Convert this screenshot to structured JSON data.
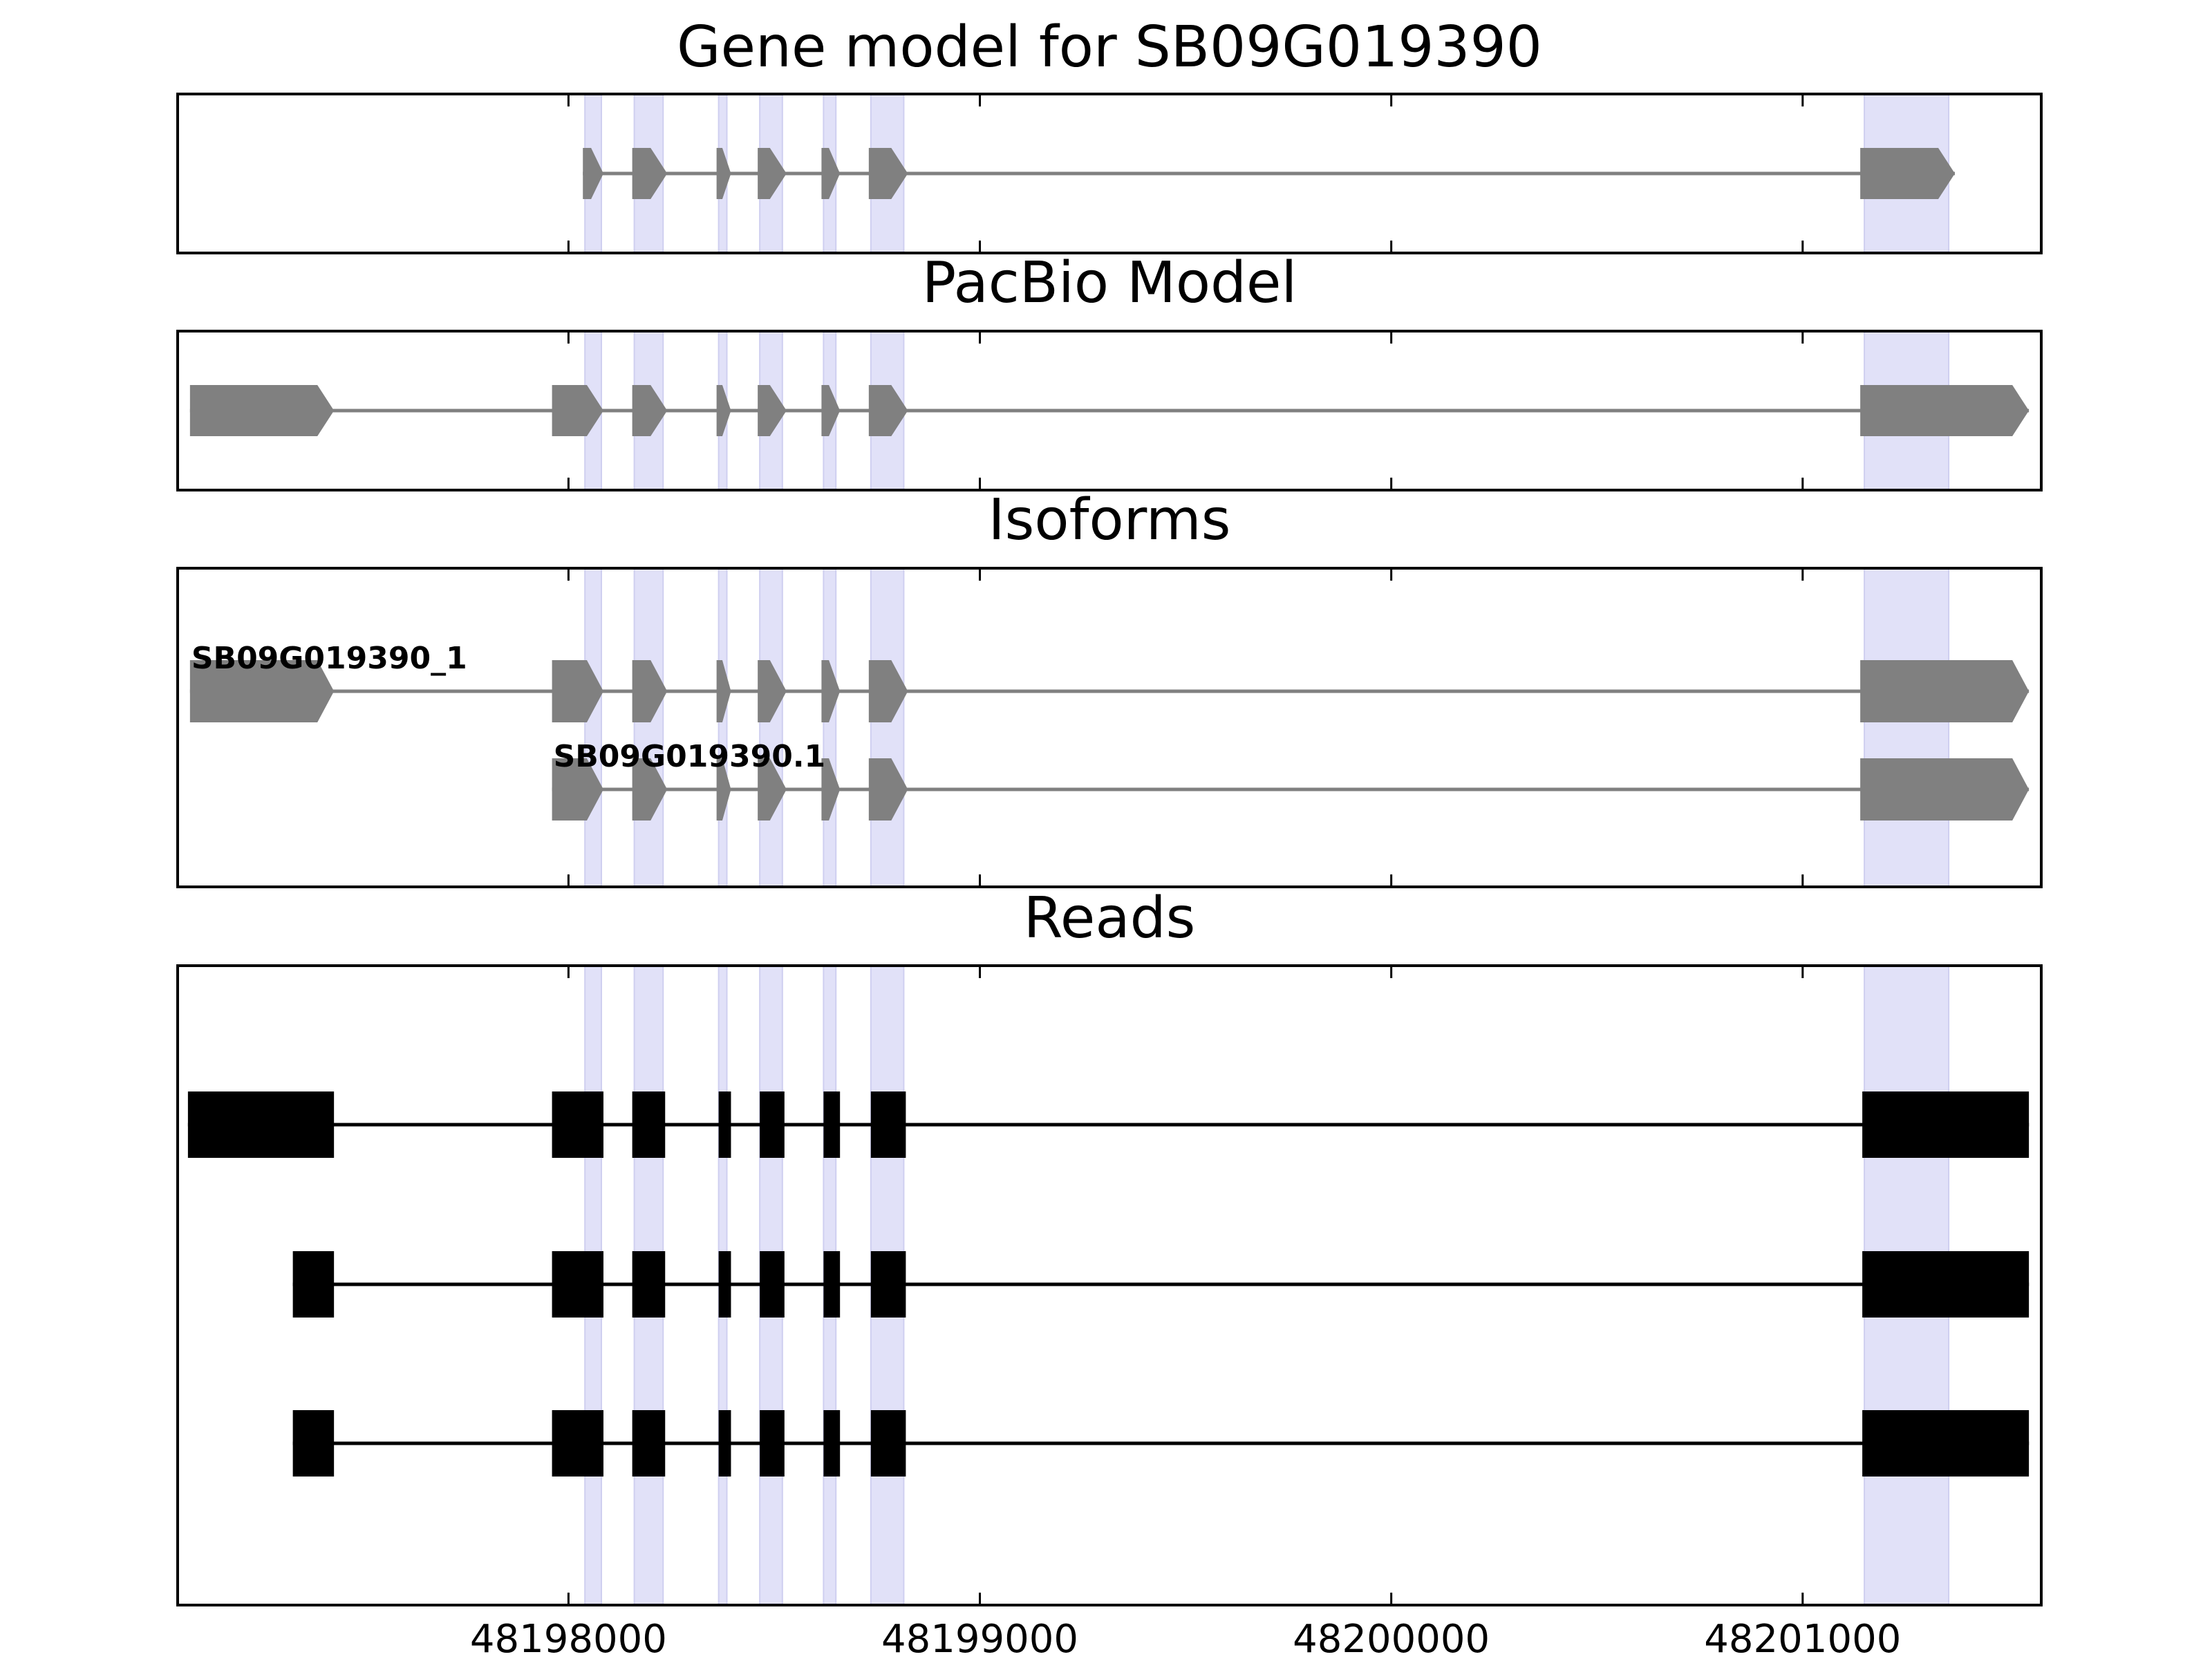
{
  "chart_data": {
    "type": "gene-structure",
    "x_range": [
      48197050,
      48201580
    ],
    "x_ticks": [
      48198000,
      48199000,
      48200000,
      48201000
    ],
    "x_tick_labels": [
      "48198000",
      "48199000",
      "48200000",
      "48201000"
    ],
    "highlight_regions": [
      [
        48198040,
        48198080
      ],
      [
        48198160,
        48198230
      ],
      [
        48198365,
        48198385
      ],
      [
        48198465,
        48198520
      ],
      [
        48198620,
        48198650
      ],
      [
        48198735,
        48198815
      ],
      [
        48201150,
        48201355
      ]
    ],
    "colors": {
      "model_feature": "#808080",
      "read_feature": "#000000",
      "highlight": "#e1e1f8",
      "axes": "#000000"
    },
    "panels": [
      {
        "title": "Gene model for SB09G019390",
        "tracks": [
          {
            "label": "",
            "strand": "+",
            "exons": [
              [
                48198035,
                48198085
              ],
              [
                48198155,
                48198240
              ],
              [
                48198360,
                48198395
              ],
              [
                48198460,
                48198530
              ],
              [
                48198615,
                48198660
              ],
              [
                48198730,
                48198825
              ],
              [
                48201140,
                48201370
              ]
            ]
          }
        ]
      },
      {
        "title": "PacBio Model",
        "tracks": [
          {
            "label": "",
            "strand": "+",
            "exons": [
              [
                48197080,
                48197430
              ],
              [
                48197960,
                48198085
              ],
              [
                48198155,
                48198240
              ],
              [
                48198360,
                48198395
              ],
              [
                48198460,
                48198530
              ],
              [
                48198615,
                48198660
              ],
              [
                48198730,
                48198825
              ],
              [
                48201140,
                48201550
              ]
            ]
          }
        ]
      },
      {
        "title": "Isoforms",
        "tracks": [
          {
            "label": "SB09G019390_1",
            "strand": "+",
            "exons": [
              [
                48197080,
                48197430
              ],
              [
                48197960,
                48198085
              ],
              [
                48198155,
                48198240
              ],
              [
                48198360,
                48198395
              ],
              [
                48198460,
                48198530
              ],
              [
                48198615,
                48198660
              ],
              [
                48198730,
                48198825
              ],
              [
                48201140,
                48201550
              ]
            ]
          },
          {
            "label": "SB09G019390.1",
            "strand": "+",
            "exons": [
              [
                48197960,
                48198085
              ],
              [
                48198155,
                48198240
              ],
              [
                48198360,
                48198395
              ],
              [
                48198460,
                48198530
              ],
              [
                48198615,
                48198660
              ],
              [
                48198730,
                48198825
              ],
              [
                48201140,
                48201550
              ]
            ]
          }
        ]
      },
      {
        "title": "Reads",
        "tracks": [
          {
            "label": "",
            "strand": "",
            "exons": [
              [
                48197075,
                48197430
              ],
              [
                48197960,
                48198085
              ],
              [
                48198155,
                48198235
              ],
              [
                48198365,
                48198395
              ],
              [
                48198465,
                48198525
              ],
              [
                48198620,
                48198660
              ],
              [
                48198735,
                48198820
              ],
              [
                48201145,
                48201550
              ]
            ]
          },
          {
            "label": "",
            "strand": "",
            "exons": [
              [
                48197330,
                48197430
              ],
              [
                48197960,
                48198085
              ],
              [
                48198155,
                48198235
              ],
              [
                48198365,
                48198395
              ],
              [
                48198465,
                48198525
              ],
              [
                48198620,
                48198660
              ],
              [
                48198735,
                48198820
              ],
              [
                48201145,
                48201550
              ]
            ]
          },
          {
            "label": "",
            "strand": "",
            "exons": [
              [
                48197330,
                48197430
              ],
              [
                48197960,
                48198085
              ],
              [
                48198155,
                48198235
              ],
              [
                48198365,
                48198395
              ],
              [
                48198465,
                48198525
              ],
              [
                48198620,
                48198660
              ],
              [
                48198735,
                48198820
              ],
              [
                48201145,
                48201550
              ]
            ]
          }
        ]
      }
    ]
  }
}
